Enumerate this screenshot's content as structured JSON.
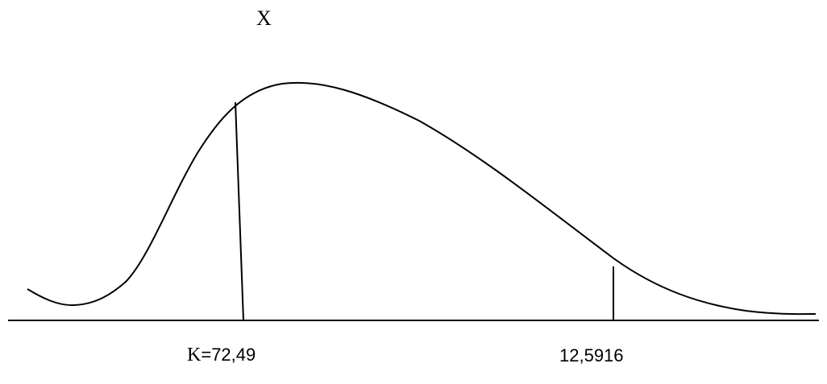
{
  "diagram": {
    "title_symbol": "X",
    "k_label_prefix": "K",
    "k_label_value": "=72,49",
    "critical_label": "12,5916",
    "line_color": "#000000"
  }
}
